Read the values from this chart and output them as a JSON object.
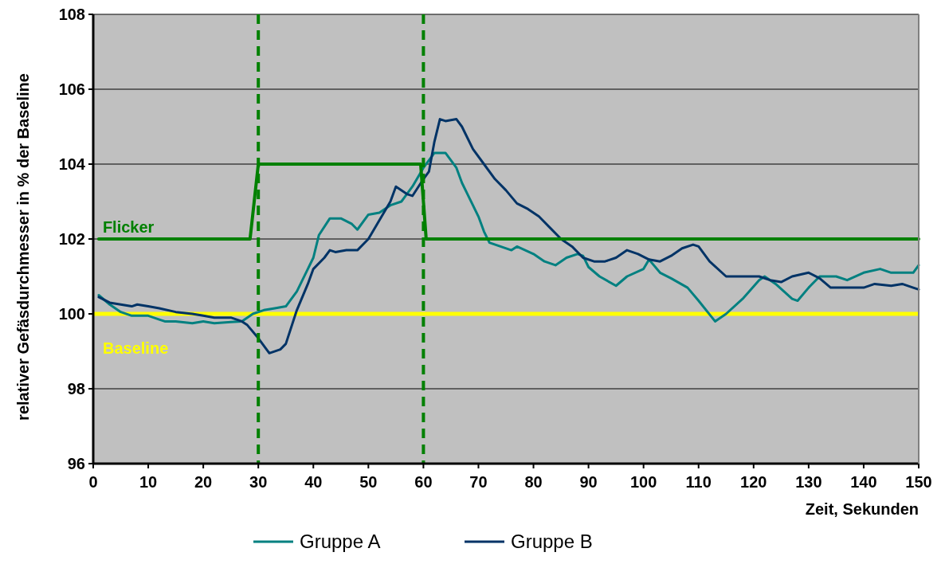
{
  "chart_data": {
    "type": "line",
    "xlabel": "Zeit, Sekunden",
    "ylabel": "relativer Gefäsdurchmesser in % der Baseline",
    "xlim": [
      0,
      150
    ],
    "xticks": [
      0,
      10,
      20,
      30,
      40,
      50,
      60,
      70,
      80,
      90,
      100,
      110,
      120,
      130,
      140,
      150
    ],
    "ylim": [
      96,
      108
    ],
    "yticks": [
      96,
      98,
      100,
      102,
      104,
      106,
      108
    ],
    "grid": "y",
    "legend": "bottom",
    "marker": "none",
    "line_style": "solid",
    "series": [
      {
        "name": "Gruppe A",
        "color": "#008080",
        "x": [
          1,
          3,
          5,
          7,
          10,
          12,
          13,
          15,
          18,
          20,
          22,
          25,
          27,
          29,
          31,
          33,
          35,
          37,
          39,
          40,
          41,
          43,
          45,
          47,
          48,
          50,
          52,
          54,
          56,
          58,
          60,
          62,
          64,
          66,
          67,
          68,
          70,
          71,
          72,
          74,
          76,
          77,
          80,
          82,
          84,
          86,
          88,
          89,
          90,
          92,
          95,
          97,
          100,
          101,
          103,
          105,
          108,
          110,
          113,
          115,
          118,
          121,
          122,
          124,
          127,
          128,
          130,
          132,
          135,
          137,
          140,
          143,
          145,
          147,
          149,
          150
        ],
        "values": [
          100.5,
          100.25,
          100.05,
          99.95,
          99.95,
          99.85,
          99.8,
          99.8,
          99.75,
          99.8,
          99.75,
          99.78,
          99.8,
          100,
          100.1,
          100.15,
          100.2,
          100.6,
          101.2,
          101.5,
          102.1,
          102.55,
          102.55,
          102.4,
          102.25,
          102.65,
          102.7,
          102.9,
          103,
          103.4,
          103.9,
          104.3,
          104.3,
          103.9,
          103.5,
          103.2,
          102.6,
          102.2,
          101.9,
          101.8,
          101.7,
          101.8,
          101.6,
          101.4,
          101.3,
          101.5,
          101.6,
          101.55,
          101.25,
          101,
          100.75,
          101,
          101.2,
          101.45,
          101.1,
          100.95,
          100.7,
          100.35,
          99.8,
          100,
          100.4,
          100.9,
          101,
          100.8,
          100.4,
          100.35,
          100.7,
          101,
          101,
          100.9,
          101.1,
          101.2,
          101.1,
          101.1,
          101.1,
          101.3
        ]
      },
      {
        "name": "Gruppe B",
        "color": "#003366",
        "x": [
          1,
          3,
          5,
          7,
          8,
          10,
          12,
          15,
          18,
          20,
          22,
          25,
          27,
          28,
          30,
          32,
          34,
          35,
          37,
          39,
          40,
          42,
          43,
          44,
          46,
          48,
          50,
          52,
          54,
          55,
          57,
          58,
          60,
          61,
          62,
          63,
          64,
          66,
          67,
          69,
          71,
          73,
          75,
          77,
          79,
          81,
          83,
          85,
          87,
          89,
          91,
          93,
          95,
          97,
          99,
          101,
          103,
          105,
          107,
          109,
          110,
          112,
          115,
          118,
          121,
          123,
          125,
          127,
          130,
          132,
          134,
          137,
          140,
          142,
          145,
          147,
          149,
          150
        ],
        "values": [
          100.45,
          100.3,
          100.25,
          100.2,
          100.25,
          100.2,
          100.15,
          100.05,
          100,
          99.95,
          99.9,
          99.9,
          99.8,
          99.7,
          99.35,
          98.95,
          99.05,
          99.2,
          100.1,
          100.8,
          101.2,
          101.5,
          101.7,
          101.65,
          101.7,
          101.7,
          102,
          102.5,
          103,
          103.4,
          103.2,
          103.15,
          103.6,
          103.8,
          104.6,
          105.2,
          105.15,
          105.2,
          105,
          104.4,
          104,
          103.6,
          103.3,
          102.95,
          102.8,
          102.6,
          102.3,
          102,
          101.8,
          101.5,
          101.4,
          101.4,
          101.5,
          101.7,
          101.6,
          101.45,
          101.4,
          101.55,
          101.75,
          101.85,
          101.8,
          101.4,
          101,
          101,
          101,
          100.9,
          100.85,
          101,
          101.1,
          100.95,
          100.7,
          100.7,
          100.7,
          100.8,
          100.75,
          100.8,
          100.7,
          100.65
        ]
      },
      {
        "color": "#008000",
        "x": [
          1,
          28.5,
          30,
          59.5,
          60.5,
          150
        ],
        "values": [
          102,
          102,
          104,
          104,
          102,
          102
        ]
      }
    ],
    "ref_lines": [
      {
        "axis": "y",
        "value": 100,
        "label": "Baseline",
        "color": "#ffff00",
        "line_style": "solid"
      },
      {
        "axis": "x",
        "value": 30,
        "color": "#008000",
        "line_style": "dashed"
      },
      {
        "axis": "x",
        "value": 60,
        "color": "#008000",
        "line_style": "dashed"
      }
    ],
    "annotations": [
      {
        "text": "Flicker",
        "x": 1,
        "y": 102
      }
    ]
  }
}
